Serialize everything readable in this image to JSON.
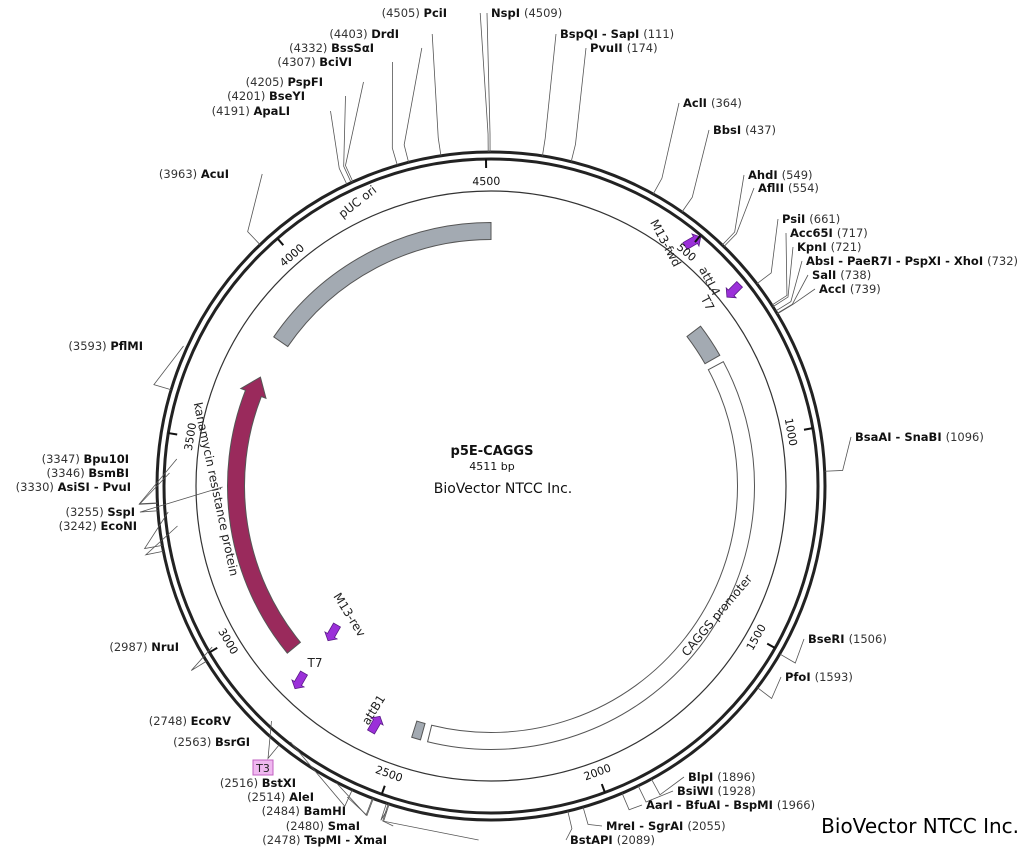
{
  "plasmid": {
    "name": "p5E-CAGGS",
    "length_label": "4511 bp",
    "company": "BioVector NTCC Inc.",
    "total_bp": 4511
  },
  "brand": "BioVector NTCC Inc.",
  "ring_ticks": [
    500,
    1000,
    1500,
    2000,
    2500,
    3000,
    3500,
    4000,
    4500
  ],
  "features": [
    {
      "name": "pUC ori",
      "start": 3815,
      "end": 4511,
      "dir": -1,
      "color": "#a3aab2",
      "kind": "bar"
    },
    {
      "name": "kanamycin resistance protein",
      "start": 2890,
      "end": 3700,
      "dir": 1,
      "color": "#9a2a5c",
      "kind": "arrow"
    },
    {
      "name": "CAGGS promoter",
      "start": 775,
      "end": 2430,
      "dir": 1,
      "color": "#ffffff",
      "kind": "bar"
    },
    {
      "name": "attL4",
      "start": 660,
      "end": 755,
      "dir": 1,
      "color": "#a3aab2",
      "kind": "bar"
    },
    {
      "name": "attB1",
      "start": 2450,
      "end": 2475,
      "dir": 1,
      "color": "#a3aab2",
      "kind": "bar"
    }
  ],
  "primers": [
    {
      "name": "M13-fwd",
      "pos": 635,
      "dir": 1
    },
    {
      "name": "T7",
      "pos": 748,
      "dir": -1
    },
    {
      "name": "M13-rev",
      "pos": 2785,
      "dir": -1
    },
    {
      "name": "T7",
      "pos": 2700,
      "dir": -1
    },
    {
      "name": "attB1",
      "pos": 2460,
      "dir": 1
    }
  ],
  "sites": [
    {
      "name": "PciI",
      "pos": "(4505)",
      "side": "L"
    },
    {
      "name": "NspI",
      "pos": "(4509)",
      "side": "R"
    },
    {
      "name": "BspQI - SapI",
      "pos": "(111)",
      "side": "R"
    },
    {
      "name": "PvuII",
      "pos": "(174)",
      "side": "R"
    },
    {
      "name": "AclI",
      "pos": "(364)",
      "side": "R"
    },
    {
      "name": "BbsI",
      "pos": "(437)",
      "side": "R"
    },
    {
      "name": "AhdI",
      "pos": "(549)",
      "side": "R"
    },
    {
      "name": "AflII",
      "pos": "(554)",
      "side": "R"
    },
    {
      "name": "PsiI",
      "pos": "(661)",
      "side": "R"
    },
    {
      "name": "Acc65I",
      "pos": "(717)",
      "side": "R"
    },
    {
      "name": "KpnI",
      "pos": "(721)",
      "side": "R"
    },
    {
      "name": "AbsI - PaeR7I - PspXI - XhoI",
      "pos": "(732)",
      "side": "R"
    },
    {
      "name": "SalI",
      "pos": "(738)",
      "side": "R"
    },
    {
      "name": "AccI",
      "pos": "(739)",
      "side": "R"
    },
    {
      "name": "BsaAI - SnaBI",
      "pos": "(1096)",
      "side": "R"
    },
    {
      "name": "BseRI",
      "pos": "(1506)",
      "side": "R"
    },
    {
      "name": "PfoI",
      "pos": "(1593)",
      "side": "R"
    },
    {
      "name": "BlpI",
      "pos": "(1896)",
      "side": "R"
    },
    {
      "name": "BsiWI",
      "pos": "(1928)",
      "side": "R"
    },
    {
      "name": "AarI - BfuAI - BspMI",
      "pos": "(1966)",
      "side": "R"
    },
    {
      "name": "MreI - SgrAI",
      "pos": "(2055)",
      "side": "R"
    },
    {
      "name": "BstAPI",
      "pos": "(2089)",
      "side": "R"
    },
    {
      "name": "TspMI - XmaI",
      "pos": "(2478)",
      "side": "L"
    },
    {
      "name": "SmaI",
      "pos": "(2480)",
      "side": "L"
    },
    {
      "name": "BamHI",
      "pos": "(2484)",
      "side": "L"
    },
    {
      "name": "AleI",
      "pos": "(2514)",
      "side": "L"
    },
    {
      "name": "BstXI",
      "pos": "(2516)",
      "side": "L"
    },
    {
      "name": "BsrGI",
      "pos": "(2563)",
      "side": "L"
    },
    {
      "name": "EcoRV",
      "pos": "(2748)",
      "side": "L"
    },
    {
      "name": "NruI",
      "pos": "(2987)",
      "side": "L"
    },
    {
      "name": "EcoNI",
      "pos": "(3242)",
      "side": "L"
    },
    {
      "name": "SspI",
      "pos": "(3255)",
      "side": "L"
    },
    {
      "name": "AsiSI - PvuI",
      "pos": "(3330)",
      "side": "L"
    },
    {
      "name": "BsmBI",
      "pos": "(3346)",
      "side": "L"
    },
    {
      "name": "Bpu10I",
      "pos": "(3347)",
      "side": "L"
    },
    {
      "name": "PflMI",
      "pos": "(3593)",
      "side": "L"
    },
    {
      "name": "AcuI",
      "pos": "(3963)",
      "side": "L"
    },
    {
      "name": "ApaLI",
      "pos": "(4191)",
      "side": "L"
    },
    {
      "name": "BseYI",
      "pos": "(4201)",
      "side": "L"
    },
    {
      "name": "PspFI",
      "pos": "(4205)",
      "side": "L"
    },
    {
      "name": "BciVI",
      "pos": "(4307)",
      "side": "L"
    },
    {
      "name": "BssSαI",
      "pos": "(4332)",
      "side": "L"
    },
    {
      "name": "DrdI",
      "pos": "(4403)",
      "side": "L"
    }
  ],
  "badge": {
    "label": "T3"
  }
}
